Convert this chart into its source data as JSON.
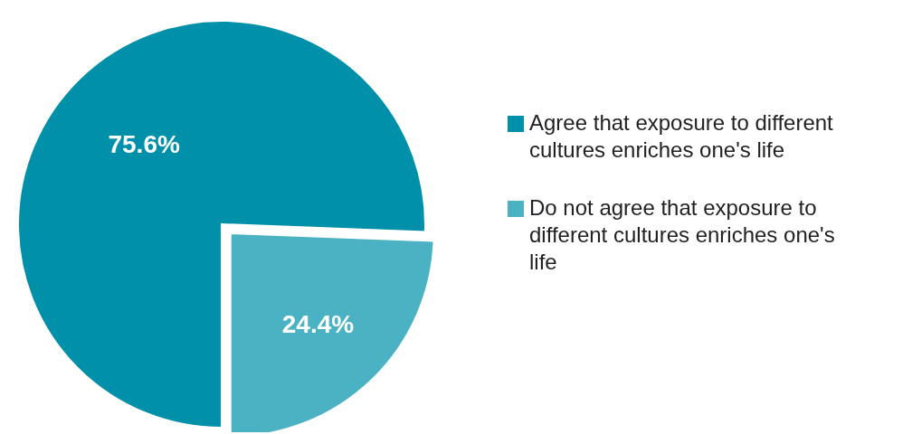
{
  "chart_data": {
    "type": "pie",
    "categories": [
      "Agree that exposure to different cultures enriches one's life",
      "Do not agree that exposure to different cultures enriches one's life"
    ],
    "values": [
      75.6,
      24.4
    ],
    "colors": [
      "#0090a9",
      "#4ab2c3"
    ],
    "value_labels": [
      "75.6%",
      "24.4%"
    ],
    "legend": "right"
  }
}
